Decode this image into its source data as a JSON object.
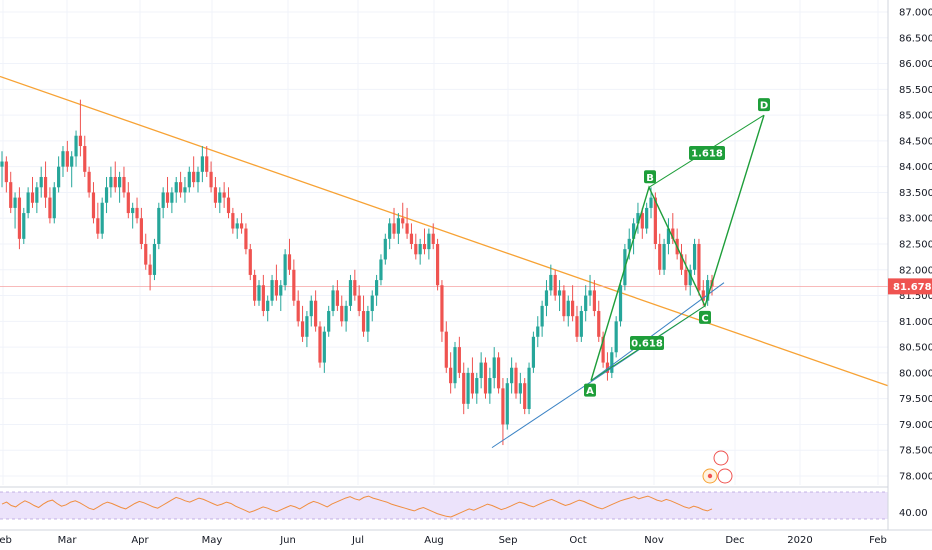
{
  "colors": {
    "up": "#26a69a",
    "down": "#ef5350",
    "trendline": "#f7a234",
    "pattern": "#1e9e3a",
    "fib_line": "#3b83c4",
    "price_tag": "#ef5350",
    "rsi_line": "#f08e40",
    "rsi_band": "#ece3fb",
    "grid": "#f0f3fa"
  },
  "chart_data": {
    "type": "candlestick",
    "x_labels": [
      "Feb",
      "Mar",
      "Apr",
      "May",
      "Jun",
      "Jul",
      "Aug",
      "Sep",
      "Oct",
      "Nov",
      "Dec",
      "2020",
      "Feb"
    ],
    "y_ticks": [
      "87.000",
      "86.500",
      "86.000",
      "85.500",
      "85.000",
      "84.500",
      "84.000",
      "83.500",
      "83.000",
      "82.500",
      "82.000",
      "81.500",
      "81.000",
      "80.500",
      "80.000",
      "79.500",
      "79.000",
      "78.500",
      "78.000"
    ],
    "ylim": [
      77.9,
      87.2
    ],
    "last_price": 81.678,
    "last_price_label": "81.678",
    "trendline": {
      "start": {
        "x": "Jan",
        "y": 85.75
      },
      "end": {
        "x": "Feb 2020",
        "y": 79.75
      }
    },
    "pattern_points": [
      {
        "label": "A",
        "x": "Oct",
        "y": 79.85
      },
      {
        "label": "B",
        "x": "Oct end",
        "y": 83.6
      },
      {
        "label": "C",
        "x": "Nov",
        "y": 81.3
      },
      {
        "label": "D",
        "x": "Dec",
        "y": 85.0
      }
    ],
    "fib_labels": [
      {
        "text": "1.618"
      },
      {
        "text": "0.618"
      }
    ],
    "candles": [
      [
        84.0,
        84.3,
        83.6,
        84.1
      ],
      [
        84.1,
        84.2,
        83.5,
        83.7
      ],
      [
        83.7,
        83.9,
        83.1,
        83.2
      ],
      [
        83.2,
        83.5,
        82.8,
        83.4
      ],
      [
        83.4,
        83.6,
        82.4,
        82.6
      ],
      [
        82.6,
        83.2,
        82.5,
        83.1
      ],
      [
        83.1,
        83.6,
        83.0,
        83.5
      ],
      [
        83.5,
        83.8,
        83.2,
        83.3
      ],
      [
        83.3,
        83.7,
        83.1,
        83.6
      ],
      [
        83.6,
        84.0,
        83.4,
        83.8
      ],
      [
        83.8,
        84.1,
        83.2,
        83.4
      ],
      [
        83.4,
        83.6,
        82.9,
        83.0
      ],
      [
        83.0,
        83.7,
        82.9,
        83.6
      ],
      [
        83.6,
        84.2,
        83.5,
        84.0
      ],
      [
        84.0,
        84.4,
        83.8,
        84.3
      ],
      [
        84.3,
        84.5,
        83.9,
        84.0
      ],
      [
        84.0,
        84.3,
        83.6,
        84.2
      ],
      [
        84.2,
        84.7,
        84.0,
        84.6
      ],
      [
        84.6,
        85.3,
        84.2,
        84.4
      ],
      [
        84.4,
        84.6,
        83.8,
        83.9
      ],
      [
        83.9,
        84.0,
        83.4,
        83.5
      ],
      [
        83.5,
        83.7,
        82.9,
        83.0
      ],
      [
        83.0,
        83.3,
        82.6,
        82.7
      ],
      [
        82.7,
        83.4,
        82.6,
        83.3
      ],
      [
        83.3,
        83.8,
        83.1,
        83.6
      ],
      [
        83.6,
        84.0,
        83.4,
        83.8
      ],
      [
        83.8,
        84.1,
        83.5,
        83.6
      ],
      [
        83.6,
        83.9,
        83.3,
        83.8
      ],
      [
        83.8,
        84.0,
        83.4,
        83.5
      ],
      [
        83.5,
        83.7,
        83.0,
        83.1
      ],
      [
        83.1,
        83.3,
        82.8,
        83.2
      ],
      [
        83.2,
        83.4,
        82.9,
        83.0
      ],
      [
        83.0,
        83.2,
        82.4,
        82.5
      ],
      [
        82.5,
        82.7,
        82.0,
        82.1
      ],
      [
        82.1,
        82.3,
        81.6,
        81.9
      ],
      [
        81.9,
        82.6,
        81.8,
        82.5
      ],
      [
        82.5,
        83.3,
        82.4,
        83.2
      ],
      [
        83.2,
        83.6,
        83.0,
        83.5
      ],
      [
        83.5,
        83.8,
        83.2,
        83.3
      ],
      [
        83.3,
        83.6,
        83.1,
        83.5
      ],
      [
        83.5,
        83.8,
        83.3,
        83.7
      ],
      [
        83.7,
        83.9,
        83.4,
        83.5
      ],
      [
        83.5,
        83.8,
        83.3,
        83.6
      ],
      [
        83.6,
        84.0,
        83.5,
        83.9
      ],
      [
        83.9,
        84.2,
        83.6,
        83.7
      ],
      [
        83.7,
        84.0,
        83.5,
        83.9
      ],
      [
        83.9,
        84.4,
        83.7,
        84.2
      ],
      [
        84.2,
        84.4,
        83.8,
        83.9
      ],
      [
        83.9,
        84.1,
        83.5,
        83.6
      ],
      [
        83.6,
        83.8,
        83.2,
        83.3
      ],
      [
        83.3,
        83.6,
        83.1,
        83.5
      ],
      [
        83.5,
        83.7,
        83.2,
        83.4
      ],
      [
        83.4,
        83.6,
        83.0,
        83.1
      ],
      [
        83.1,
        83.2,
        82.7,
        82.8
      ],
      [
        82.8,
        83.0,
        82.6,
        82.9
      ],
      [
        82.9,
        83.1,
        82.7,
        82.8
      ],
      [
        82.8,
        82.9,
        82.3,
        82.4
      ],
      [
        82.4,
        82.5,
        81.8,
        81.9
      ],
      [
        81.9,
        82.0,
        81.3,
        81.4
      ],
      [
        81.4,
        81.8,
        81.3,
        81.7
      ],
      [
        81.7,
        81.9,
        81.1,
        81.2
      ],
      [
        81.2,
        81.5,
        81.0,
        81.4
      ],
      [
        81.4,
        81.9,
        81.3,
        81.8
      ],
      [
        81.8,
        82.1,
        81.4,
        81.5
      ],
      [
        81.5,
        81.8,
        81.2,
        81.7
      ],
      [
        81.7,
        82.4,
        81.6,
        82.3
      ],
      [
        82.3,
        82.6,
        81.9,
        82.0
      ],
      [
        82.0,
        82.2,
        81.3,
        81.4
      ],
      [
        81.4,
        81.6,
        80.9,
        81.0
      ],
      [
        81.0,
        81.3,
        80.6,
        80.7
      ],
      [
        80.7,
        81.2,
        80.5,
        81.1
      ],
      [
        81.1,
        81.5,
        80.9,
        81.4
      ],
      [
        81.4,
        81.6,
        80.8,
        80.9
      ],
      [
        80.9,
        81.0,
        80.1,
        80.2
      ],
      [
        80.2,
        80.9,
        80.0,
        80.8
      ],
      [
        80.8,
        81.3,
        80.7,
        81.2
      ],
      [
        81.2,
        81.7,
        81.1,
        81.6
      ],
      [
        81.6,
        81.8,
        81.2,
        81.3
      ],
      [
        81.3,
        81.5,
        80.9,
        81.0
      ],
      [
        81.0,
        81.4,
        80.8,
        81.3
      ],
      [
        81.3,
        81.9,
        81.2,
        81.8
      ],
      [
        81.8,
        82.0,
        81.4,
        81.5
      ],
      [
        81.5,
        81.7,
        81.1,
        81.2
      ],
      [
        81.2,
        81.5,
        80.7,
        80.8
      ],
      [
        80.8,
        81.3,
        80.6,
        81.2
      ],
      [
        81.2,
        81.6,
        81.0,
        81.5
      ],
      [
        81.5,
        81.9,
        81.3,
        81.8
      ],
      [
        81.8,
        82.3,
        81.7,
        82.2
      ],
      [
        82.2,
        82.7,
        82.1,
        82.6
      ],
      [
        82.6,
        83.0,
        82.4,
        82.9
      ],
      [
        82.9,
        83.2,
        82.6,
        82.7
      ],
      [
        82.7,
        83.1,
        82.5,
        83.0
      ],
      [
        83.0,
        83.3,
        82.8,
        82.9
      ],
      [
        82.9,
        83.2,
        82.6,
        82.7
      ],
      [
        82.7,
        82.9,
        82.4,
        82.5
      ],
      [
        82.5,
        82.7,
        82.2,
        82.3
      ],
      [
        82.3,
        82.6,
        82.1,
        82.5
      ],
      [
        82.5,
        82.8,
        82.3,
        82.4
      ],
      [
        82.4,
        82.8,
        82.2,
        82.7
      ],
      [
        82.7,
        82.9,
        82.4,
        82.5
      ],
      [
        82.5,
        82.6,
        81.6,
        81.7
      ],
      [
        81.7,
        81.8,
        80.6,
        80.8
      ],
      [
        80.8,
        81.0,
        80.0,
        80.1
      ],
      [
        80.1,
        80.4,
        79.6,
        79.8
      ],
      [
        79.8,
        80.6,
        79.7,
        80.5
      ],
      [
        80.5,
        80.7,
        79.9,
        80.0
      ],
      [
        80.0,
        80.2,
        79.2,
        79.4
      ],
      [
        79.4,
        80.1,
        79.3,
        80.0
      ],
      [
        80.0,
        80.3,
        79.5,
        79.6
      ],
      [
        79.6,
        80.0,
        79.4,
        79.9
      ],
      [
        79.9,
        80.4,
        79.7,
        80.2
      ],
      [
        80.2,
        80.3,
        79.5,
        79.6
      ],
      [
        79.6,
        80.1,
        79.4,
        79.9
      ],
      [
        79.9,
        80.5,
        79.7,
        80.3
      ],
      [
        80.3,
        80.4,
        79.6,
        79.7
      ],
      [
        79.7,
        79.9,
        78.6,
        79.0
      ],
      [
        79.0,
        79.9,
        78.9,
        79.8
      ],
      [
        79.8,
        80.3,
        79.6,
        80.1
      ],
      [
        80.1,
        80.2,
        79.5,
        79.6
      ],
      [
        79.6,
        80.0,
        79.4,
        79.8
      ],
      [
        79.8,
        79.9,
        79.2,
        79.3
      ],
      [
        79.3,
        80.2,
        79.2,
        80.1
      ],
      [
        80.1,
        80.8,
        80.0,
        80.7
      ],
      [
        80.7,
        81.1,
        80.5,
        80.9
      ],
      [
        80.9,
        81.4,
        80.7,
        81.3
      ],
      [
        81.3,
        81.8,
        81.1,
        81.6
      ],
      [
        81.6,
        82.1,
        81.5,
        81.9
      ],
      [
        81.9,
        82.0,
        81.4,
        81.5
      ],
      [
        81.5,
        81.8,
        81.2,
        81.6
      ],
      [
        81.6,
        81.7,
        81.0,
        81.1
      ],
      [
        81.1,
        81.5,
        80.9,
        81.4
      ],
      [
        81.4,
        81.7,
        81.0,
        81.1
      ],
      [
        81.1,
        81.3,
        80.6,
        80.7
      ],
      [
        80.7,
        81.3,
        80.6,
        81.2
      ],
      [
        81.2,
        81.7,
        81.0,
        81.5
      ],
      [
        81.5,
        81.9,
        81.3,
        81.6
      ],
      [
        81.6,
        81.8,
        81.1,
        81.2
      ],
      [
        81.2,
        81.4,
        80.6,
        80.7
      ],
      [
        80.7,
        80.8,
        80.1,
        80.2
      ],
      [
        80.2,
        80.4,
        79.85,
        80.0
      ],
      [
        80.0,
        80.5,
        79.9,
        80.4
      ],
      [
        80.4,
        81.1,
        80.3,
        81.0
      ],
      [
        81.0,
        81.8,
        80.9,
        81.7
      ],
      [
        81.7,
        82.5,
        81.6,
        82.4
      ],
      [
        82.4,
        82.8,
        82.2,
        82.6
      ],
      [
        82.6,
        83.0,
        82.3,
        82.9
      ],
      [
        82.9,
        83.3,
        82.7,
        83.1
      ],
      [
        83.1,
        83.2,
        82.6,
        82.8
      ],
      [
        82.8,
        83.3,
        82.7,
        83.2
      ],
      [
        83.2,
        83.6,
        83.0,
        83.4
      ],
      [
        83.4,
        83.5,
        82.4,
        82.5
      ],
      [
        82.5,
        82.7,
        81.9,
        82.0
      ],
      [
        82.0,
        82.6,
        81.9,
        82.5
      ],
      [
        82.5,
        83.0,
        82.3,
        82.8
      ],
      [
        82.8,
        83.1,
        82.5,
        82.6
      ],
      [
        82.6,
        82.8,
        82.2,
        82.3
      ],
      [
        82.3,
        82.5,
        81.9,
        82.0
      ],
      [
        82.0,
        82.3,
        81.6,
        81.7
      ],
      [
        81.7,
        82.1,
        81.5,
        82.0
      ],
      [
        82.0,
        82.6,
        81.9,
        82.5
      ],
      [
        82.5,
        82.6,
        81.5,
        81.6
      ],
      [
        81.6,
        81.8,
        81.3,
        81.4
      ],
      [
        81.4,
        81.9,
        81.3,
        81.8
      ],
      [
        81.8,
        81.9,
        81.5,
        81.678
      ]
    ],
    "rsi": {
      "level_label": "40.00",
      "values": [
        52,
        55,
        50,
        48,
        53,
        57,
        54,
        50,
        47,
        52,
        56,
        58,
        53,
        49,
        51,
        55,
        57,
        54,
        50,
        46,
        44,
        48,
        52,
        55,
        53,
        50,
        47,
        45,
        49,
        53,
        56,
        54,
        51,
        48,
        46,
        50,
        54,
        58,
        62,
        60,
        57,
        55,
        58,
        61,
        59,
        56,
        53,
        50,
        52,
        55,
        53,
        49,
        46,
        43,
        40,
        42,
        45,
        48,
        46,
        43,
        41,
        44,
        47,
        50,
        48,
        45,
        49,
        53,
        56,
        54,
        51,
        48,
        52,
        55,
        58,
        61,
        63,
        60,
        58,
        62,
        64,
        61,
        59,
        57,
        55,
        52,
        50,
        48,
        46,
        44,
        42,
        45,
        47,
        44,
        41,
        38,
        36,
        34,
        33,
        36,
        39,
        42,
        45,
        43,
        46,
        49,
        52,
        50,
        47,
        44,
        46,
        49,
        52,
        55,
        53,
        50,
        48,
        51,
        54,
        57,
        59,
        56,
        53,
        50,
        52,
        55,
        58,
        56,
        53,
        50,
        47,
        45,
        48,
        51,
        54,
        57,
        59,
        61,
        63,
        60,
        62,
        64,
        61,
        58,
        56,
        59,
        57,
        54,
        51,
        48,
        46,
        49,
        47,
        44,
        42,
        45
      ]
    }
  }
}
